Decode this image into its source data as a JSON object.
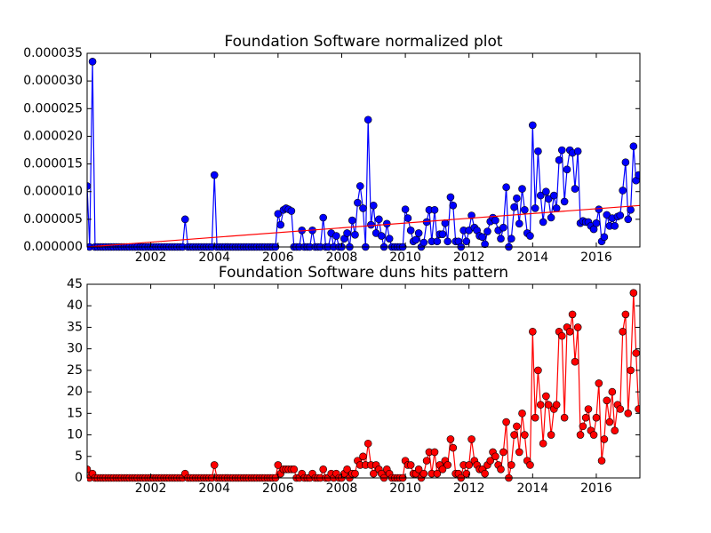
{
  "chart_data": [
    {
      "type": "line",
      "title": "Foundation Software normalized plot",
      "xlim": [
        2000,
        2017.37
      ],
      "xticks": [
        2002,
        2004,
        2006,
        2008,
        2010,
        2012,
        2014,
        2016
      ],
      "ylim": [
        0,
        3.5e-05
      ],
      "yticks": [
        {
          "value": 0,
          "label": "0.000000"
        },
        {
          "value": 5e-06,
          "label": "0.000005"
        },
        {
          "value": 1e-05,
          "label": "0.000010"
        },
        {
          "value": 1.5e-05,
          "label": "0.000015"
        },
        {
          "value": 2e-05,
          "label": "0.000020"
        },
        {
          "value": 2.5e-05,
          "label": "0.000025"
        },
        {
          "value": 3e-05,
          "label": "0.000030"
        },
        {
          "value": 3.5e-05,
          "label": "0.000035"
        }
      ],
      "series": [
        {
          "color": "#0000ff",
          "marker": true,
          "x": [
            2000.0,
            2000.08,
            2000.17,
            2000.25,
            2000.33,
            2000.42,
            2000.5,
            2000.58,
            2000.67,
            2000.75,
            2000.83,
            2000.92,
            2001.0,
            2001.08,
            2001.17,
            2001.25,
            2001.33,
            2001.42,
            2001.5,
            2001.58,
            2001.67,
            2001.75,
            2001.83,
            2001.92,
            2002.0,
            2002.08,
            2002.17,
            2002.25,
            2002.33,
            2002.42,
            2002.5,
            2002.58,
            2002.67,
            2002.75,
            2002.83,
            2002.92,
            2003.0,
            2003.08,
            2003.17,
            2003.25,
            2003.33,
            2003.42,
            2003.5,
            2003.58,
            2003.67,
            2003.75,
            2003.83,
            2003.92,
            2004.0,
            2004.08,
            2004.17,
            2004.25,
            2004.33,
            2004.42,
            2004.5,
            2004.58,
            2004.67,
            2004.75,
            2004.83,
            2004.92,
            2005.0,
            2005.08,
            2005.17,
            2005.25,
            2005.33,
            2005.42,
            2005.5,
            2005.58,
            2005.67,
            2005.75,
            2005.83,
            2005.92,
            2006.0,
            2006.08,
            2006.17,
            2006.25,
            2006.33,
            2006.42,
            2006.5,
            2006.58,
            2006.67,
            2006.75,
            2006.83,
            2006.92,
            2007.0,
            2007.08,
            2007.17,
            2007.25,
            2007.33,
            2007.42,
            2007.5,
            2007.58,
            2007.67,
            2007.75,
            2007.83,
            2007.92,
            2008.0,
            2008.08,
            2008.17,
            2008.25,
            2008.33,
            2008.42,
            2008.5,
            2008.58,
            2008.67,
            2008.75,
            2008.83,
            2008.92,
            2009.0,
            2009.08,
            2009.17,
            2009.25,
            2009.33,
            2009.42,
            2009.5,
            2009.58,
            2009.67,
            2009.75,
            2009.83,
            2009.92,
            2010.0,
            2010.08,
            2010.17,
            2010.25,
            2010.33,
            2010.42,
            2010.5,
            2010.58,
            2010.67,
            2010.75,
            2010.83,
            2010.92,
            2011.0,
            2011.08,
            2011.17,
            2011.25,
            2011.33,
            2011.42,
            2011.5,
            2011.58,
            2011.67,
            2011.75,
            2011.83,
            2011.92,
            2012.0,
            2012.08,
            2012.17,
            2012.25,
            2012.33,
            2012.42,
            2012.5,
            2012.58,
            2012.67,
            2012.75,
            2012.83,
            2012.92,
            2013.0,
            2013.08,
            2013.17,
            2013.25,
            2013.33,
            2013.42,
            2013.5,
            2013.58,
            2013.67,
            2013.75,
            2013.83,
            2013.92,
            2014.0,
            2014.08,
            2014.17,
            2014.25,
            2014.33,
            2014.42,
            2014.5,
            2014.58,
            2014.67,
            2014.75,
            2014.83,
            2014.92,
            2015.0,
            2015.08,
            2015.17,
            2015.25,
            2015.33,
            2015.42,
            2015.5,
            2015.58,
            2015.67,
            2015.75,
            2015.83,
            2015.92,
            2016.0,
            2016.08,
            2016.17,
            2016.25,
            2016.33,
            2016.42,
            2016.5,
            2016.58,
            2016.67,
            2016.75,
            2016.83,
            2016.92,
            2017.0,
            2017.08,
            2017.17,
            2017.25,
            2017.33
          ],
          "values": [
            1.1e-05,
            0,
            3.35e-05,
            0,
            0,
            0,
            0,
            0,
            0,
            0,
            0,
            0,
            0,
            0,
            0,
            0,
            0,
            0,
            0,
            0,
            0,
            0,
            0,
            0,
            0,
            0,
            0,
            0,
            0,
            0,
            0,
            0,
            0,
            0,
            0,
            0,
            0,
            5e-06,
            0,
            0,
            0,
            0,
            0,
            0,
            0,
            0,
            0,
            0,
            1.3e-05,
            0,
            0,
            0,
            0,
            0,
            0,
            0,
            0,
            0,
            0,
            0,
            0,
            0,
            0,
            0,
            0,
            0,
            0,
            0,
            0,
            0,
            0,
            0,
            6e-06,
            4e-06,
            6.7e-06,
            7e-06,
            6.8e-06,
            6.5e-06,
            0,
            0,
            0,
            3e-06,
            0,
            0,
            0,
            3e-06,
            0,
            0,
            0,
            5.3e-06,
            0,
            0,
            2.5e-06,
            0,
            2e-06,
            0,
            0,
            1.5e-06,
            2.5e-06,
            0,
            4.8e-06,
            2.2e-06,
            8e-06,
            1.1e-05,
            7e-06,
            0,
            2.3e-05,
            4e-06,
            7.5e-06,
            2.5e-06,
            5e-06,
            2e-06,
            0,
            4.2e-06,
            1.5e-06,
            0,
            0,
            0,
            0,
            0,
            6.8e-06,
            5.2e-06,
            3e-06,
            1e-06,
            1.3e-06,
            2.5e-06,
            0,
            8e-07,
            4.5e-06,
            6.7e-06,
            1e-06,
            6.7e-06,
            1e-06,
            2.3e-06,
            2.3e-06,
            4.3e-06,
            1e-06,
            9e-06,
            7.5e-06,
            1e-06,
            1e-06,
            0,
            3e-06,
            1e-06,
            3e-06,
            5.7e-06,
            3.5e-06,
            3e-06,
            2e-06,
            1.8e-06,
            5e-07,
            2.8e-06,
            4.6e-06,
            5.3e-06,
            4.8e-06,
            3e-06,
            1.5e-06,
            3.5e-06,
            1.08e-05,
            0,
            1.5e-06,
            7.2e-06,
            8.8e-06,
            4.2e-06,
            1.05e-05,
            6.7e-06,
            2.5e-06,
            2e-06,
            2.2e-05,
            7e-06,
            1.73e-05,
            9.3e-06,
            4.5e-06,
            1e-05,
            8.7e-06,
            5.3e-06,
            9.3e-06,
            7e-06,
            1.57e-05,
            1.75e-05,
            8.2e-06,
            1.4e-05,
            1.75e-05,
            1.7e-05,
            1.05e-05,
            1.73e-05,
            4.3e-06,
            4.7e-06,
            4.5e-06,
            4.5e-06,
            3.8e-06,
            3.2e-06,
            4.3e-06,
            6.8e-06,
            1e-06,
            1.8e-06,
            5.8e-06,
            3.8e-06,
            5.2e-06,
            3.8e-06,
            5.5e-06,
            5.7e-06,
            1.02e-05,
            1.53e-05,
            5e-06,
            6.7e-06,
            1.82e-05,
            1.2e-05,
            1.3e-05
          ]
        },
        {
          "color": "#ff0000",
          "marker": false,
          "x": [
            2000,
            2017.37
          ],
          "values": [
            0,
            7.5e-06
          ]
        }
      ]
    },
    {
      "type": "line",
      "title": "Foundation Software duns hits pattern",
      "xlim": [
        2000,
        2017.37
      ],
      "xticks": [
        2002,
        2004,
        2006,
        2008,
        2010,
        2012,
        2014,
        2016
      ],
      "ylim": [
        0,
        45
      ],
      "yticks": [
        0,
        5,
        10,
        15,
        20,
        25,
        30,
        35,
        40,
        45
      ],
      "series": [
        {
          "color": "#ff0000",
          "marker": true,
          "x": [
            2000.0,
            2000.08,
            2000.17,
            2000.25,
            2000.33,
            2000.42,
            2000.5,
            2000.58,
            2000.67,
            2000.75,
            2000.83,
            2000.92,
            2001.0,
            2001.08,
            2001.17,
            2001.25,
            2001.33,
            2001.42,
            2001.5,
            2001.58,
            2001.67,
            2001.75,
            2001.83,
            2001.92,
            2002.0,
            2002.08,
            2002.17,
            2002.25,
            2002.33,
            2002.42,
            2002.5,
            2002.58,
            2002.67,
            2002.75,
            2002.83,
            2002.92,
            2003.0,
            2003.08,
            2003.17,
            2003.25,
            2003.33,
            2003.42,
            2003.5,
            2003.58,
            2003.67,
            2003.75,
            2003.83,
            2003.92,
            2004.0,
            2004.08,
            2004.17,
            2004.25,
            2004.33,
            2004.42,
            2004.5,
            2004.58,
            2004.67,
            2004.75,
            2004.83,
            2004.92,
            2005.0,
            2005.08,
            2005.17,
            2005.25,
            2005.33,
            2005.42,
            2005.5,
            2005.58,
            2005.67,
            2005.75,
            2005.83,
            2005.92,
            2006.0,
            2006.08,
            2006.17,
            2006.25,
            2006.33,
            2006.42,
            2006.5,
            2006.58,
            2006.67,
            2006.75,
            2006.83,
            2006.92,
            2007.0,
            2007.08,
            2007.17,
            2007.25,
            2007.33,
            2007.42,
            2007.5,
            2007.58,
            2007.67,
            2007.75,
            2007.83,
            2007.92,
            2008.0,
            2008.08,
            2008.17,
            2008.25,
            2008.33,
            2008.42,
            2008.5,
            2008.58,
            2008.67,
            2008.75,
            2008.83,
            2008.92,
            2009.0,
            2009.08,
            2009.17,
            2009.25,
            2009.33,
            2009.42,
            2009.5,
            2009.58,
            2009.67,
            2009.75,
            2009.83,
            2009.92,
            2010.0,
            2010.08,
            2010.17,
            2010.25,
            2010.33,
            2010.42,
            2010.5,
            2010.58,
            2010.67,
            2010.75,
            2010.83,
            2010.92,
            2011.0,
            2011.08,
            2011.17,
            2011.25,
            2011.33,
            2011.42,
            2011.5,
            2011.58,
            2011.67,
            2011.75,
            2011.83,
            2011.92,
            2012.0,
            2012.08,
            2012.17,
            2012.25,
            2012.33,
            2012.42,
            2012.5,
            2012.58,
            2012.67,
            2012.75,
            2012.83,
            2012.92,
            2013.0,
            2013.08,
            2013.17,
            2013.25,
            2013.33,
            2013.42,
            2013.5,
            2013.58,
            2013.67,
            2013.75,
            2013.83,
            2013.92,
            2014.0,
            2014.08,
            2014.17,
            2014.25,
            2014.33,
            2014.42,
            2014.5,
            2014.58,
            2014.67,
            2014.75,
            2014.83,
            2014.92,
            2015.0,
            2015.08,
            2015.17,
            2015.25,
            2015.33,
            2015.42,
            2015.5,
            2015.58,
            2015.67,
            2015.75,
            2015.83,
            2015.92,
            2016.0,
            2016.08,
            2016.17,
            2016.25,
            2016.33,
            2016.42,
            2016.5,
            2016.58,
            2016.67,
            2016.75,
            2016.83,
            2016.92,
            2017.0,
            2017.08,
            2017.17,
            2017.25,
            2017.33
          ],
          "values": [
            2,
            0,
            1,
            0,
            0,
            0,
            0,
            0,
            0,
            0,
            0,
            0,
            0,
            0,
            0,
            0,
            0,
            0,
            0,
            0,
            0,
            0,
            0,
            0,
            0,
            0,
            0,
            0,
            0,
            0,
            0,
            0,
            0,
            0,
            0,
            0,
            0,
            1,
            0,
            0,
            0,
            0,
            0,
            0,
            0,
            0,
            0,
            0,
            3,
            0,
            0,
            0,
            0,
            0,
            0,
            0,
            0,
            0,
            0,
            0,
            0,
            0,
            0,
            0,
            0,
            0,
            0,
            0,
            0,
            0,
            0,
            0,
            3,
            1,
            2,
            2,
            2,
            2,
            2,
            0,
            0,
            1,
            0,
            0,
            0,
            1,
            0,
            0,
            0,
            2,
            0,
            0,
            1,
            0,
            1,
            0,
            0,
            1,
            2,
            0,
            1,
            1,
            4,
            3,
            5,
            3,
            8,
            3,
            1,
            3,
            2,
            1,
            0,
            2,
            1,
            0,
            0,
            0,
            0,
            0,
            4,
            3,
            3,
            1,
            1,
            2,
            0,
            1,
            4,
            6,
            1,
            6,
            1,
            3,
            2,
            4,
            3,
            9,
            7,
            1,
            1,
            0,
            3,
            1,
            3,
            9,
            4,
            3,
            2,
            2,
            1,
            3,
            4,
            6,
            5,
            3,
            2,
            6,
            13,
            0,
            3,
            10,
            12,
            6,
            15,
            10,
            4,
            3,
            34,
            14,
            25,
            17,
            8,
            19,
            17,
            10,
            16,
            17,
            34,
            33,
            14,
            35,
            34,
            38,
            27,
            35,
            10,
            12,
            14,
            16,
            11,
            10,
            14,
            22,
            4,
            9,
            18,
            13,
            20,
            11,
            17,
            16,
            34,
            38,
            15,
            25,
            43,
            29,
            16
          ]
        }
      ]
    }
  ]
}
